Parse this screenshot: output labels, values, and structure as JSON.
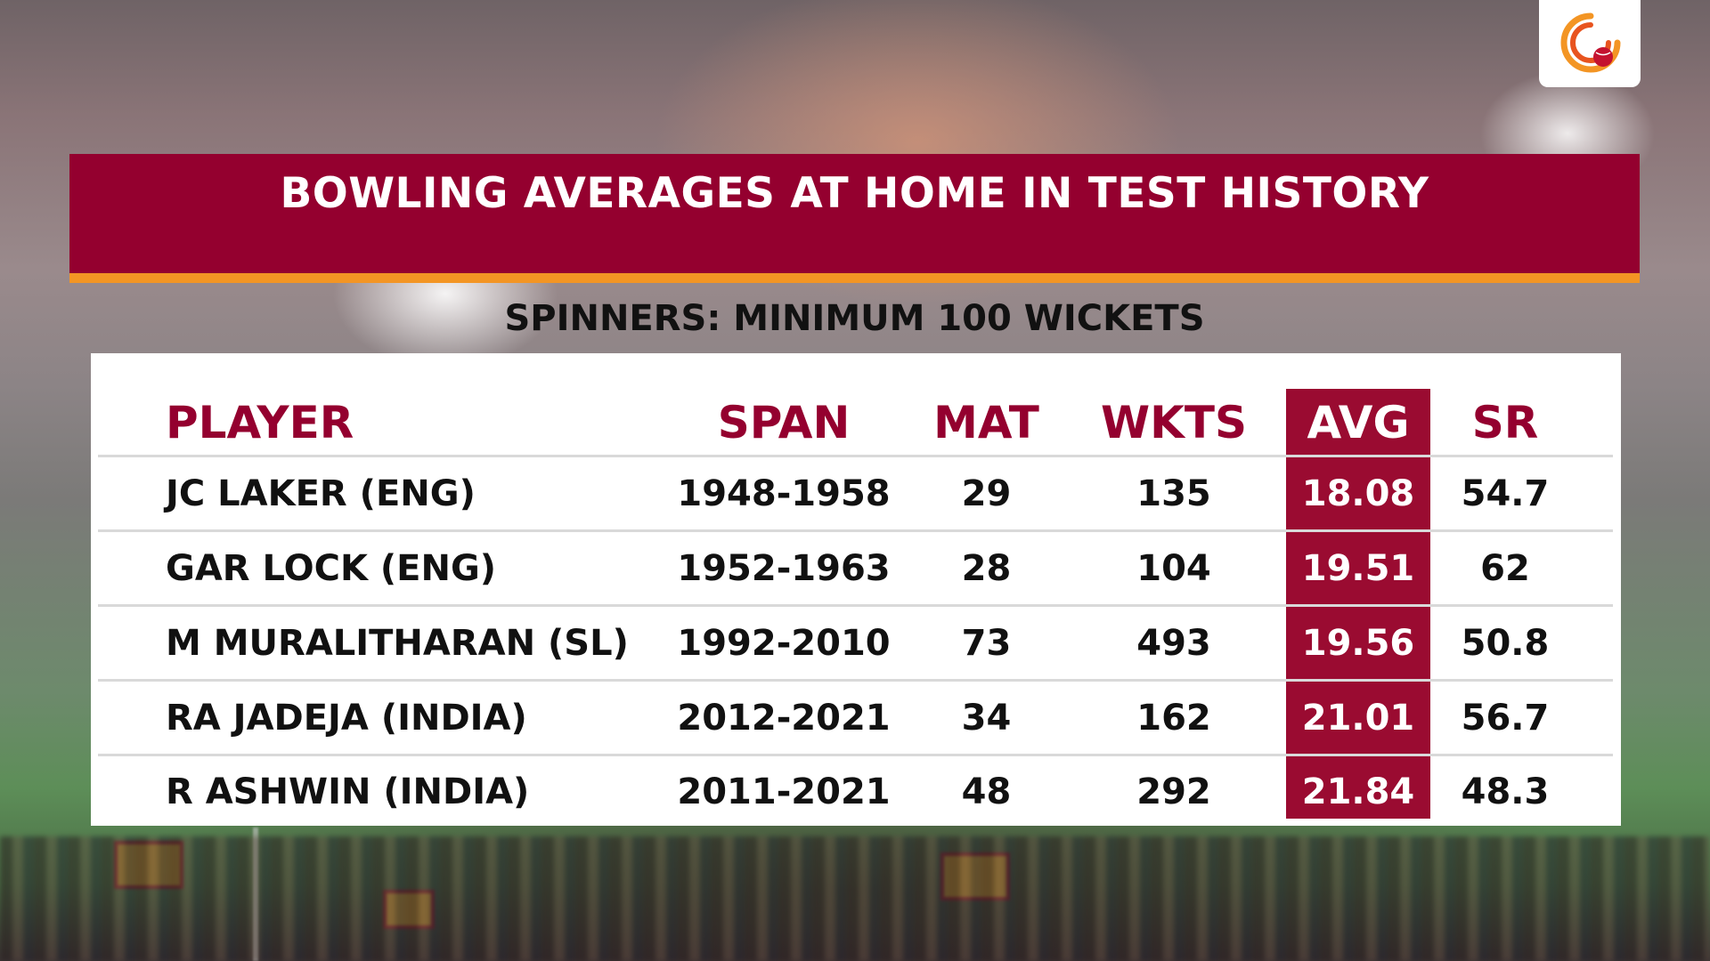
{
  "title": "BOWLING AVERAGES AT HOME IN TEST HISTORY",
  "subtitle": "SPINNERS: MINIMUM 100 WICKETS",
  "colors": {
    "banner": "#94002f",
    "stripe": "#f39524",
    "highlight": "#9a0b31",
    "header_text": "#94002f"
  },
  "logo": {
    "icon": "cricket-ball-logo-icon"
  },
  "chart_data": {
    "type": "table",
    "columns": [
      "PLAYER",
      "SPAN",
      "MAT",
      "WKTS",
      "AVG",
      "SR"
    ],
    "highlighted_column": "AVG",
    "rows": [
      [
        "JC LAKER (ENG)",
        "1948-1958",
        "29",
        "135",
        "18.08",
        "54.7"
      ],
      [
        "GAR LOCK (ENG)",
        "1952-1963",
        "28",
        "104",
        "19.51",
        "62"
      ],
      [
        "M MURALITHARAN (SL)",
        "1992-2010",
        "73",
        "493",
        "19.56",
        "50.8"
      ],
      [
        "RA JADEJA (INDIA)",
        "2012-2021",
        "34",
        "162",
        "21.01",
        "56.7"
      ],
      [
        "R ASHWIN (INDIA)",
        "2011-2021",
        "48",
        "292",
        "21.84",
        "48.3"
      ]
    ]
  }
}
